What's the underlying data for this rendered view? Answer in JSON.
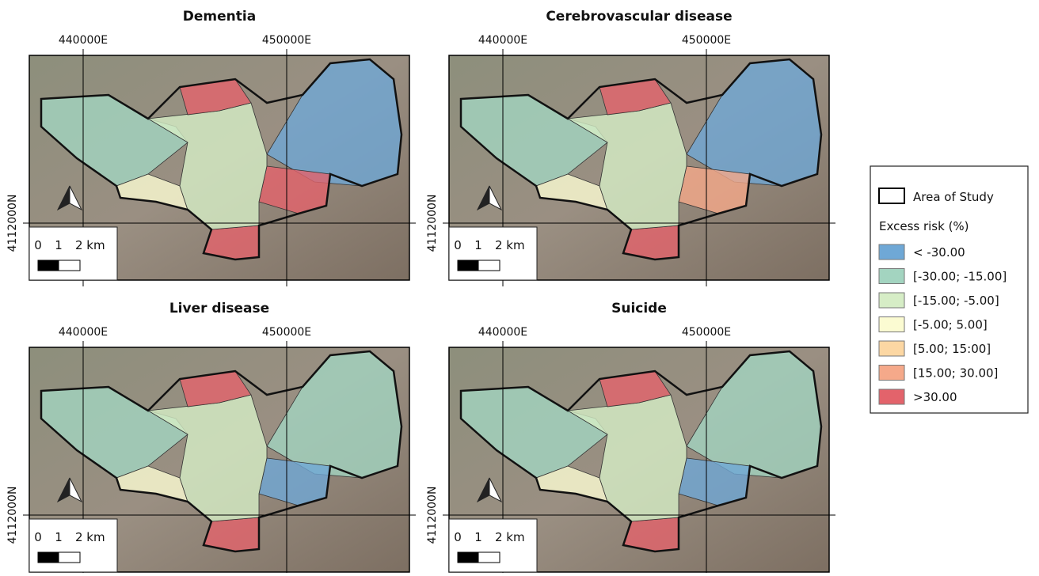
{
  "panels": [
    {
      "title": "Dementia",
      "x_labels": [
        "440000E",
        "450000E"
      ],
      "y_label": "4112000N",
      "scale_labels": [
        "0",
        "1",
        "2 km"
      ],
      "region_classes": [
        1,
        0,
        6,
        6,
        3,
        2,
        6
      ]
    },
    {
      "title": "Cerebrovascular disease",
      "x_labels": [
        "440000E",
        "450000E"
      ],
      "y_label": "4112000N",
      "scale_labels": [
        "0",
        "1",
        "2 km"
      ],
      "region_classes": [
        1,
        0,
        5,
        6,
        3,
        2,
        6
      ]
    },
    {
      "title": "Liver disease",
      "x_labels": [
        "440000E",
        "450000E"
      ],
      "y_label": "4112000N",
      "scale_labels": [
        "0",
        "1",
        "2 km"
      ],
      "region_classes": [
        1,
        1,
        0,
        6,
        3,
        2,
        6
      ]
    },
    {
      "title": "Suicide",
      "x_labels": [
        "440000E",
        "450000E"
      ],
      "y_label": "4112000N",
      "scale_labels": [
        "0",
        "1",
        "2 km"
      ],
      "region_classes": [
        1,
        1,
        0,
        6,
        3,
        2,
        6
      ]
    }
  ],
  "legend": {
    "boundary": "Area of Study",
    "title": "Excess risk (%)",
    "items": [
      {
        "label": "< -30.00",
        "color": "#6fa8d6"
      },
      {
        "label": "[-30.00; -15.00]",
        "color": "#a3d4c0"
      },
      {
        "label": "[-15.00; -5.00]",
        "color": "#d6edc6"
      },
      {
        "label": "[-5.00; 5.00]",
        "color": "#fbfbd2"
      },
      {
        "label": "[5.00; 15:00]",
        "color": "#fcd7a3"
      },
      {
        "label": "[15.00; 30.00]",
        "color": "#f5a98a"
      },
      {
        "label": ">30.00",
        "color": "#e3636b"
      }
    ]
  }
}
